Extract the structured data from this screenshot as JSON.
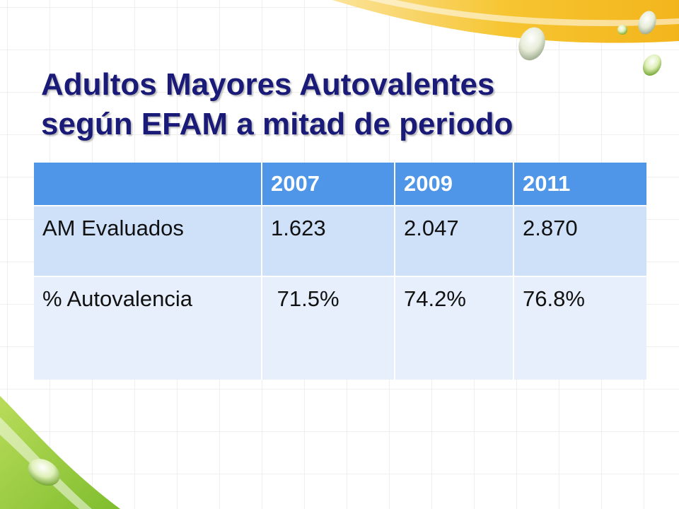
{
  "slide": {
    "title_lines": [
      "Adultos Mayores Autovalentes",
      "según EFAM  a mitad de periodo"
    ]
  },
  "table": {
    "header": [
      "",
      "2007",
      "2009",
      "2011"
    ],
    "rows": [
      [
        "AM Evaluados",
        "1.623",
        "2.047",
        "2.870"
      ],
      [
        "% Autovalencia",
        " 71.5%",
        "74.2%",
        "76.8%"
      ]
    ]
  },
  "theme": {
    "title_color": "#1a1a78",
    "header_fill": "#4f95e8",
    "row1_fill": "#cfe0f9",
    "row2_fill": "#e7effc",
    "accent_yellow": "#f5c02a",
    "accent_green": "#8cc63f"
  }
}
